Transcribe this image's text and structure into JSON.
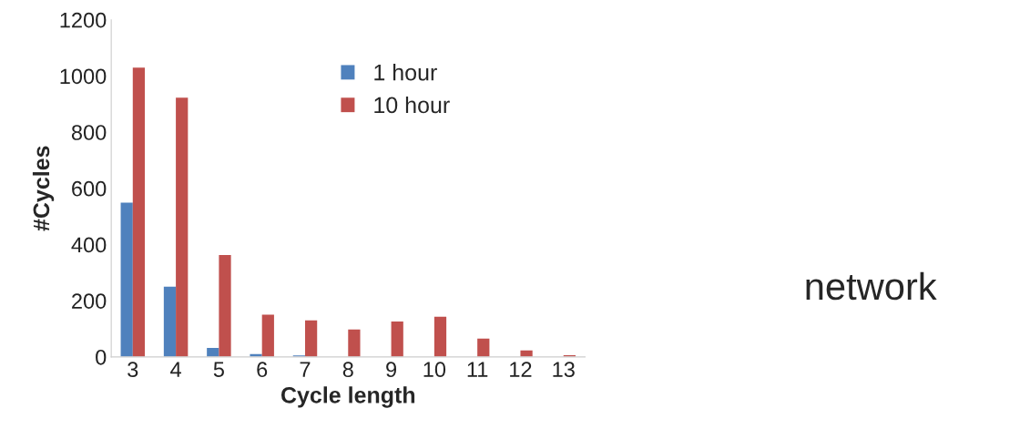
{
  "chart_data": {
    "type": "bar",
    "xlabel": "Cycle length",
    "ylabel": "#Cycles",
    "categories": [
      "3",
      "4",
      "5",
      "6",
      "7",
      "8",
      "9",
      "10",
      "11",
      "12",
      "13"
    ],
    "series": [
      {
        "name": "1 hour",
        "color": "#4f81bd",
        "values": [
          549,
          250,
          32,
          10,
          5,
          null,
          null,
          null,
          null,
          null,
          null
        ]
      },
      {
        "name": "10 hour",
        "color": "#c0504d",
        "values": [
          1030,
          923,
          363,
          150,
          130,
          98,
          126,
          143,
          65,
          23,
          6
        ]
      }
    ],
    "ylim": [
      0,
      1200
    ],
    "yticks": [
      0,
      200,
      400,
      600,
      800,
      1000,
      1200
    ],
    "legend": "top",
    "grid": false,
    "annotations": [
      "network"
    ]
  }
}
